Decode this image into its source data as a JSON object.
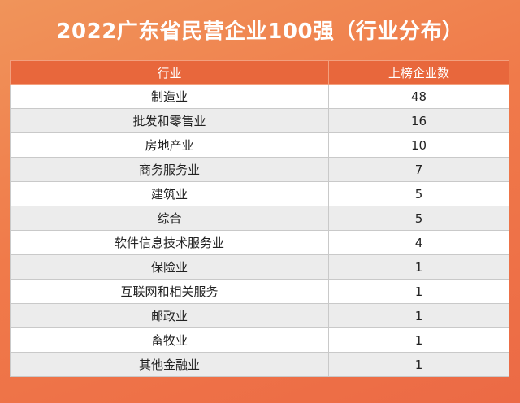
{
  "chart_data": {
    "type": "table",
    "title": "2022广东省民营企业100强（行业分布）",
    "columns": [
      "行业",
      "上榜企业数"
    ],
    "rows": [
      {
        "industry": "制造业",
        "count": 48
      },
      {
        "industry": "批发和零售业",
        "count": 16
      },
      {
        "industry": "房地产业",
        "count": 10
      },
      {
        "industry": "商务服务业",
        "count": 7
      },
      {
        "industry": "建筑业",
        "count": 5
      },
      {
        "industry": "综合",
        "count": 5
      },
      {
        "industry": "软件信息技术服务业",
        "count": 4
      },
      {
        "industry": "保险业",
        "count": 1
      },
      {
        "industry": "互联网和相关服务",
        "count": 1
      },
      {
        "industry": "邮政业",
        "count": 1
      },
      {
        "industry": "畜牧业",
        "count": 1
      },
      {
        "industry": "其他金融业",
        "count": 1
      }
    ]
  },
  "colors": {
    "background_start": "#f0945a",
    "background_end": "#ec6a45",
    "header_bg": "#e8673c",
    "row_alt_bg": "#ececec"
  }
}
